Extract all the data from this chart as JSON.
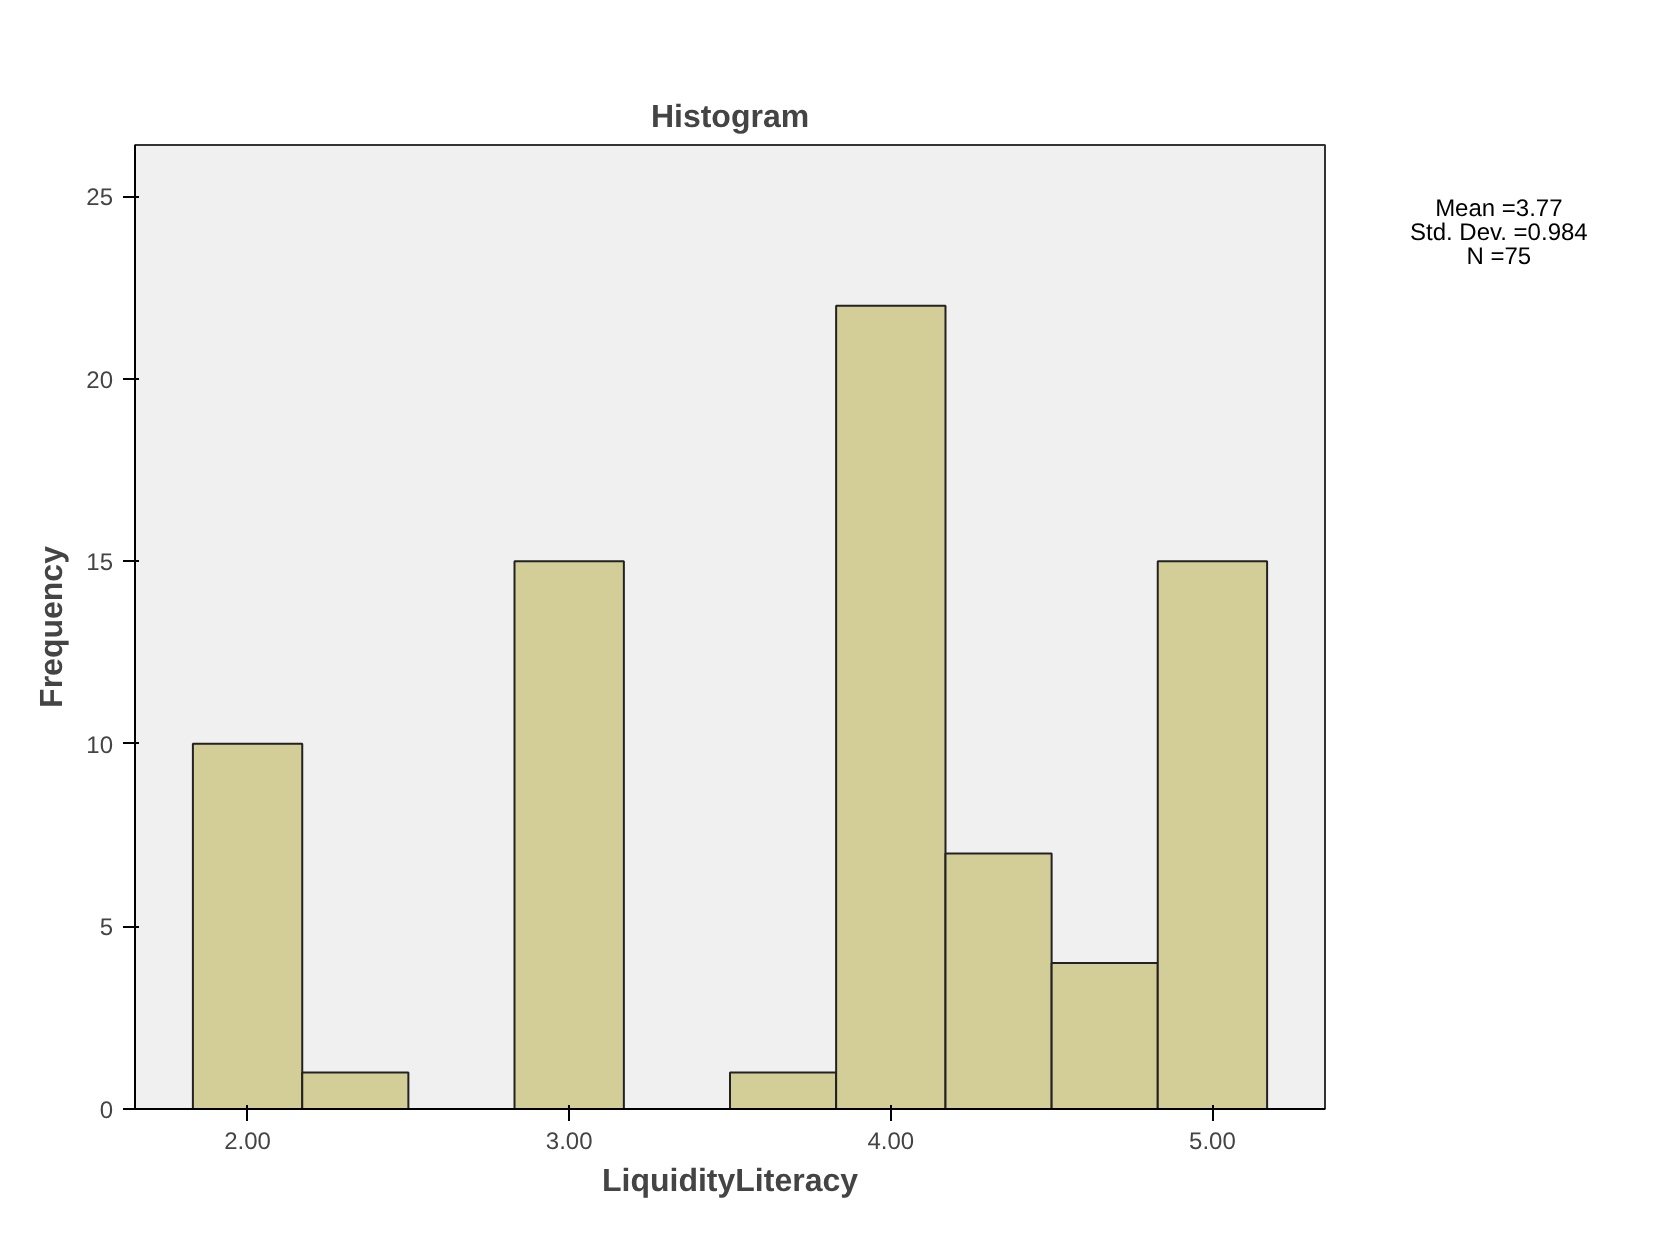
{
  "chart_data": {
    "type": "histogram",
    "title": "Histogram",
    "xlabel": "LiquidityLiteracy",
    "ylabel": "Frequency",
    "bins": [
      1.83,
      2.17,
      2.5,
      2.83,
      3.17,
      3.5,
      3.83,
      4.17,
      4.5,
      4.83,
      5.17
    ],
    "values": [
      10,
      1,
      0,
      15,
      0,
      1,
      22,
      7,
      4,
      15
    ],
    "color": "#d3ce97",
    "xlim": [
      1.65,
      5.35
    ],
    "ylim": [
      0,
      26.4
    ],
    "xticks": [
      {
        "value": 2,
        "label": "2.00"
      },
      {
        "value": 3,
        "label": "3.00"
      },
      {
        "value": 4,
        "label": "4.00"
      },
      {
        "value": 5,
        "label": "5.00"
      }
    ],
    "yticks": [
      0,
      5,
      10,
      15,
      20,
      25
    ],
    "annotations": [
      "Mean =3.77",
      "Std. Dev. =0.984",
      "N =75"
    ]
  }
}
